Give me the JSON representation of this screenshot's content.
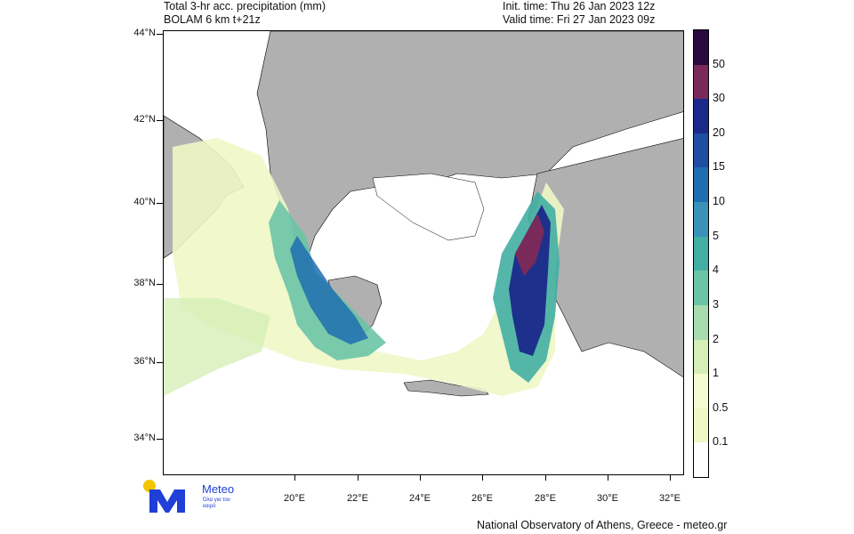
{
  "header": {
    "title_line1": "Total 3-hr acc. precipitation (mm)",
    "title_line2": "BOLAM 6 km t+21z",
    "init_time": "Init. time: Thu 26 Jan 2023 12z",
    "valid_time": "Valid time: Fri 27 Jan 2023 09z"
  },
  "axes": {
    "lat_labels": [
      "44°N",
      "42°N",
      "40°N",
      "38°N",
      "36°N",
      "34°N"
    ],
    "lon_labels": [
      "20°E",
      "22°E",
      "24°E",
      "26°E",
      "28°E",
      "30°E",
      "32°E"
    ]
  },
  "colorbar": {
    "unit": "mm",
    "levels": [
      "0.1",
      "0.5",
      "1",
      "2",
      "3",
      "4",
      "5",
      "10",
      "15",
      "20",
      "30",
      "50"
    ],
    "colors": [
      "#ffffff",
      "#eef7c6",
      "#f6fbd2",
      "#d6efb8",
      "#a8dcae",
      "#6cc4a6",
      "#43aea3",
      "#3a92b8",
      "#1f6fb0",
      "#1e4fa2",
      "#1a2a8a",
      "#7a2a5a",
      "#2a0a40"
    ]
  },
  "map": {
    "land_color": "#b0b0b0",
    "sea_color": "#ffffff",
    "border_color": "#000000"
  },
  "logo": {
    "name": "Meteo",
    "tagline": "Όλα για τον καιρό",
    "accent": "#1f3fd6",
    "dot": "#f5c400"
  },
  "footer": {
    "credit": "National Observatory of Athens, Greece - meteo.gr"
  }
}
